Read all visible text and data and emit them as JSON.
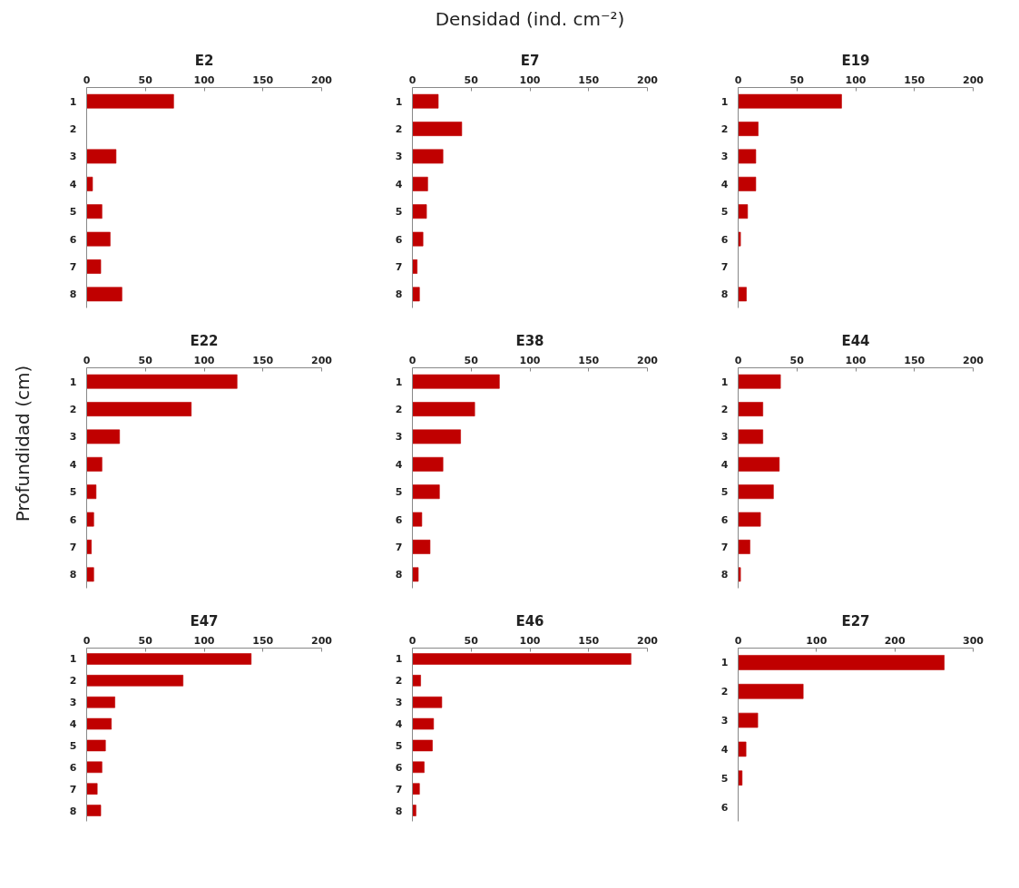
{
  "chart_data": [
    {
      "type": "bar",
      "orientation": "horizontal",
      "title": "E2",
      "categories": [
        "1",
        "2",
        "3",
        "4",
        "5",
        "6",
        "7",
        "8"
      ],
      "values": [
        74,
        0,
        25,
        5,
        13,
        20,
        12,
        30
      ],
      "color": "#c00000",
      "xlim": [
        0,
        200
      ],
      "xticks": [
        0,
        50,
        100,
        150,
        200
      ]
    },
    {
      "type": "bar",
      "orientation": "horizontal",
      "title": "E7",
      "xlabel": "Densidad (ind. cm⁻²)",
      "categories": [
        "1",
        "2",
        "3",
        "4",
        "5",
        "6",
        "7",
        "8"
      ],
      "values": [
        22,
        42,
        26,
        13,
        12,
        9,
        4,
        6
      ],
      "color": "#c00000",
      "xlim": [
        0,
        200
      ],
      "xticks": [
        0,
        50,
        100,
        150,
        200
      ]
    },
    {
      "type": "bar",
      "orientation": "horizontal",
      "title": "E19",
      "categories": [
        "1",
        "2",
        "3",
        "4",
        "5",
        "6",
        "7",
        "8"
      ],
      "values": [
        88,
        17,
        15,
        15,
        8,
        2,
        0,
        7
      ],
      "color": "#c00000",
      "xlim": [
        0,
        200
      ],
      "xticks": [
        0,
        50,
        100,
        150,
        200
      ]
    },
    {
      "type": "bar",
      "orientation": "horizontal",
      "title": "E22",
      "ylabel": "Profundidad (cm)",
      "categories": [
        "1",
        "2",
        "3",
        "4",
        "5",
        "6",
        "7",
        "8"
      ],
      "values": [
        128,
        89,
        28,
        13,
        8,
        6,
        4,
        6
      ],
      "color": "#c00000",
      "xlim": [
        0,
        200
      ],
      "xticks": [
        0,
        50,
        100,
        150,
        200
      ]
    },
    {
      "type": "bar",
      "orientation": "horizontal",
      "title": "E38",
      "categories": [
        "1",
        "2",
        "3",
        "4",
        "5",
        "6",
        "7",
        "8"
      ],
      "values": [
        74,
        53,
        41,
        26,
        23,
        8,
        15,
        5
      ],
      "color": "#c00000",
      "xlim": [
        0,
        200
      ],
      "xticks": [
        0,
        50,
        100,
        150,
        200
      ]
    },
    {
      "type": "bar",
      "orientation": "horizontal",
      "title": "E44",
      "categories": [
        "1",
        "2",
        "3",
        "4",
        "5",
        "6",
        "7",
        "8"
      ],
      "values": [
        36,
        21,
        21,
        35,
        30,
        19,
        10,
        2
      ],
      "color": "#c00000",
      "xlim": [
        0,
        200
      ],
      "xticks": [
        0,
        50,
        100,
        150,
        200
      ]
    },
    {
      "type": "bar",
      "orientation": "horizontal",
      "title": "E47",
      "categories": [
        "1",
        "2",
        "3",
        "4",
        "5",
        "6",
        "7",
        "8"
      ],
      "values": [
        140,
        82,
        24,
        21,
        16,
        13,
        9,
        12
      ],
      "color": "#c00000",
      "xlim": [
        0,
        200
      ],
      "xticks": [
        0,
        50,
        100,
        150,
        200
      ]
    },
    {
      "type": "bar",
      "orientation": "horizontal",
      "title": "E46",
      "categories": [
        "1",
        "2",
        "3",
        "4",
        "5",
        "6",
        "7",
        "8"
      ],
      "values": [
        186,
        7,
        25,
        18,
        17,
        10,
        6,
        3
      ],
      "color": "#c00000",
      "xlim": [
        0,
        200
      ],
      "xticks": [
        0,
        50,
        100,
        150,
        200
      ]
    },
    {
      "type": "bar",
      "orientation": "horizontal",
      "title": "E27",
      "categories": [
        "1",
        "2",
        "3",
        "4",
        "5",
        "6"
      ],
      "values": [
        263,
        83,
        25,
        10,
        5,
        0
      ],
      "color": "#c00000",
      "xlim": [
        0,
        300
      ],
      "xticks": [
        0,
        100,
        200,
        300
      ]
    }
  ]
}
